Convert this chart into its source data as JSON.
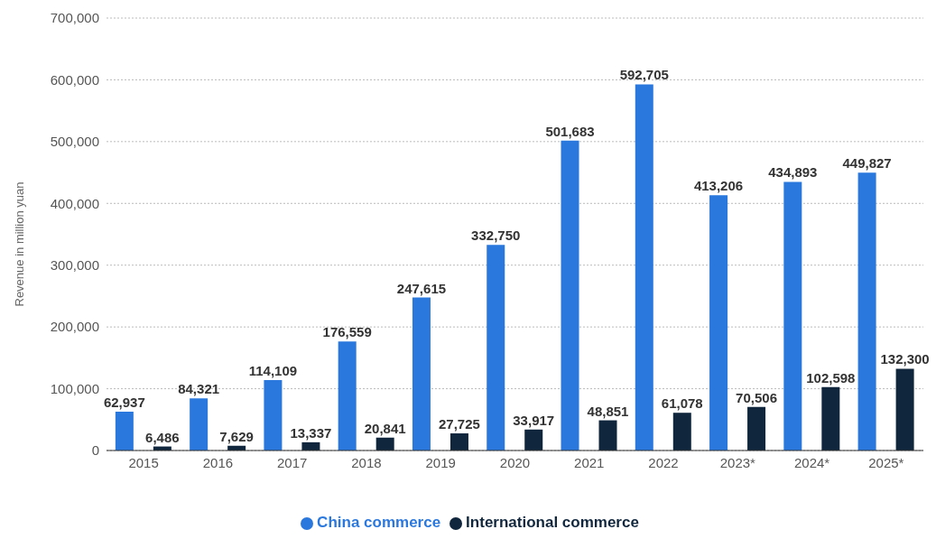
{
  "chart_data": {
    "type": "bar",
    "ylabel": "Revenue in million yuan",
    "categories": [
      "2015",
      "2016",
      "2017",
      "2018",
      "2019",
      "2020",
      "2021",
      "2022",
      "2023*",
      "2024*",
      "2025*"
    ],
    "series": [
      {
        "name": "China commerce",
        "color": "#2a78de",
        "values": [
          62937,
          84321,
          114109,
          176559,
          247615,
          332750,
          501683,
          592705,
          413206,
          434893,
          449827
        ],
        "value_labels": [
          "62,937",
          "84,321",
          "114,109",
          "176,559",
          "247,615",
          "332,750",
          "501,683",
          "592,705",
          "413,206",
          "434,893",
          "449,827"
        ]
      },
      {
        "name": "International commerce",
        "color": "#10263d",
        "values": [
          6486,
          7629,
          13337,
          20841,
          27725,
          33917,
          48851,
          61078,
          70506,
          102598,
          132300
        ],
        "value_labels": [
          "6,486",
          "7,629",
          "13,337",
          "20,841",
          "27,725",
          "33,917",
          "48,851",
          "61,078",
          "70,506",
          "102,598",
          "132,300"
        ]
      }
    ],
    "ylim": [
      0,
      700000
    ],
    "yticks": [
      {
        "value": 0,
        "label": "0"
      },
      {
        "value": 100000,
        "label": "100,000"
      },
      {
        "value": 200000,
        "label": "200,000"
      },
      {
        "value": 300000,
        "label": "300,000"
      },
      {
        "value": 400000,
        "label": "400,000"
      },
      {
        "value": 500000,
        "label": "500,000"
      },
      {
        "value": 600000,
        "label": "600,000"
      },
      {
        "value": 700000,
        "label": "700,000"
      }
    ],
    "grid": "y",
    "legend": "bottom"
  }
}
